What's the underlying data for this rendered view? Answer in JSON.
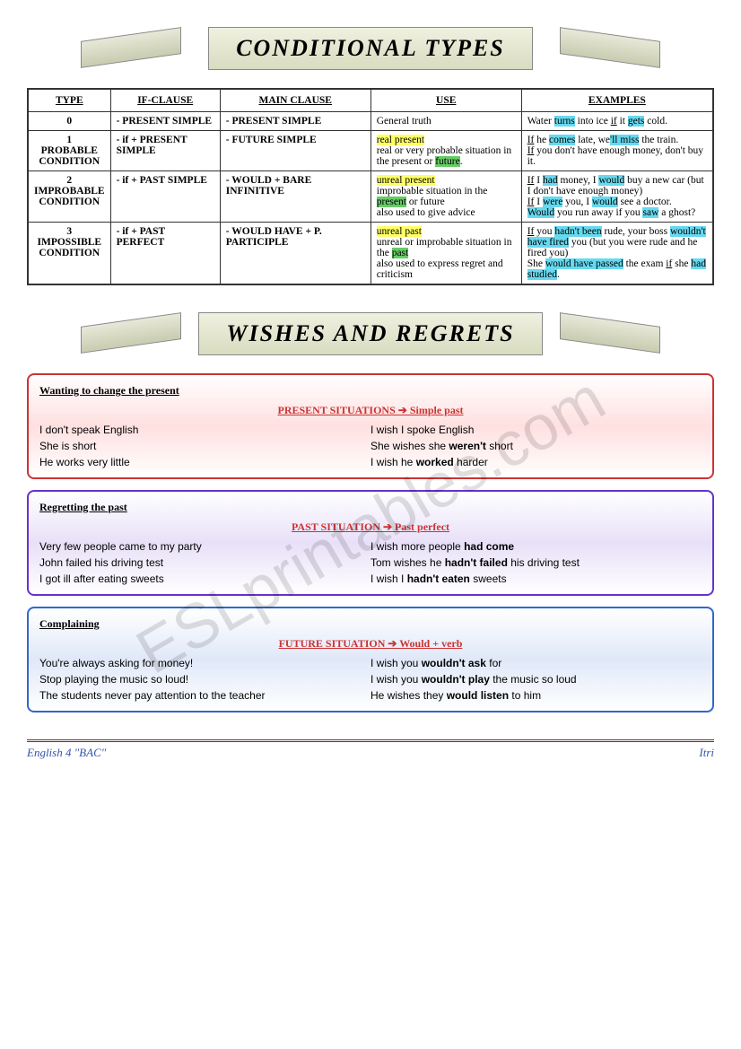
{
  "watermark": "ESLprintables.com",
  "title1": "CONDITIONAL TYPES",
  "title2": "WISHES AND REGRETS",
  "table": {
    "headers": [
      "TYPE",
      "IF-CLAUSE",
      "MAIN CLAUSE",
      "USE",
      "EXAMPLES"
    ],
    "rows": [
      {
        "type": "0",
        "if": "- PRESENT SIMPLE",
        "main": "- PRESENT SIMPLE",
        "use_html": "General truth",
        "ex_html": "Water <span class='hl-cyan'>turns</span> into ice <span class='ul'>if</span> it <span class='hl-cyan'>gets</span> cold."
      },
      {
        "type": "1<br>PROBABLE CONDITION",
        "if": "- if + PRESENT SIMPLE",
        "main": "- FUTURE SIMPLE",
        "use_html": "<span class='hl-yellow'>real present</span><br>real or very probable situation in the present or <span class='hl-green'>future</span>.",
        "ex_html": "<span class='ul'>If</span> he <span class='hl-cyan'>comes</span> late, we<span class='hl-cyan'>'ll miss</span> the train.<br><span class='ul'>If</span> you don't have enough money, don't buy it."
      },
      {
        "type": "2<br>IMPROBABLE CONDITION",
        "if": "- if + PAST SIMPLE",
        "main": "- WOULD + BARE INFINITIVE",
        "use_html": "<span class='hl-yellow'>unreal present</span><br>improbable situation in the <span class='hl-green'>present</span> or future<br>also used to give advice",
        "ex_html": "<span class='ul'>If</span> I <span class='hl-cyan'>had</span> money, I <span class='hl-cyan'>would</span> buy a new car (but I don't have enough money)<br><span class='ul'>If</span> I <span class='hl-cyan'>were</span> you, I <span class='hl-cyan'>would</span> see a doctor.<br><span class='hl-cyan'>Would</span> you run away if you <span class='hl-cyan'>saw</span> a ghost?"
      },
      {
        "type": "3<br>IMPOSSIBLE CONDITION",
        "if": "- if + PAST PERFECT",
        "main": "- WOULD HAVE + P. PARTICIPLE",
        "use_html": "<span class='hl-yellow'>unreal past</span><br>unreal or improbable situation in the <span class='hl-green'>past</span><br>also used to express regret and criticism",
        "ex_html": "<span class='ul'>If</span> you <span class='hl-cyan'>hadn't been</span> rude, your boss <span class='hl-cyan'>wouldn't have fired</span> you (but you were rude and he fired you)<br>She <span class='hl-cyan'>would have passed</span> the exam <span class='ul'>if</span> she <span class='hl-cyan'>had studied</span>."
      }
    ]
  },
  "wishes": [
    {
      "class": "red",
      "title": "Wanting to change the present",
      "rule": "PRESENT SITUATIONS  ➔  Simple past",
      "pairs": [
        [
          "I don't speak English",
          "I wish I spoke English"
        ],
        [
          "She is short",
          "She wishes she <b>weren't</b> short"
        ],
        [
          "He works very little",
          "I wish he <b>worked</b> harder"
        ]
      ]
    },
    {
      "class": "purple",
      "title": "Regretting the past",
      "rule": "PAST SITUATION  ➔  Past perfect",
      "pairs": [
        [
          "Very few people came to my party",
          "I wish more people <b>had come</b>"
        ],
        [
          "John failed his driving test",
          "Tom wishes he <b>hadn't failed</b> his driving test"
        ],
        [
          "I got ill after eating sweets",
          "I wish I <b>hadn't eaten</b> sweets"
        ]
      ]
    },
    {
      "class": "blue",
      "title": "Complaining",
      "rule": "FUTURE SITUATION  ➔  Would + verb",
      "pairs": [
        [
          "You're always asking for money!",
          "I wish you <b>wouldn't ask</b> for"
        ],
        [
          "Stop playing the music so loud!",
          "I wish you <b>wouldn't play</b> the music so loud"
        ],
        [
          "The students never pay attention to the teacher",
          "He wishes they <b>would listen</b> to him"
        ]
      ]
    }
  ],
  "footer": {
    "left": "English 4 \"BAC\"",
    "right": "Itri"
  }
}
